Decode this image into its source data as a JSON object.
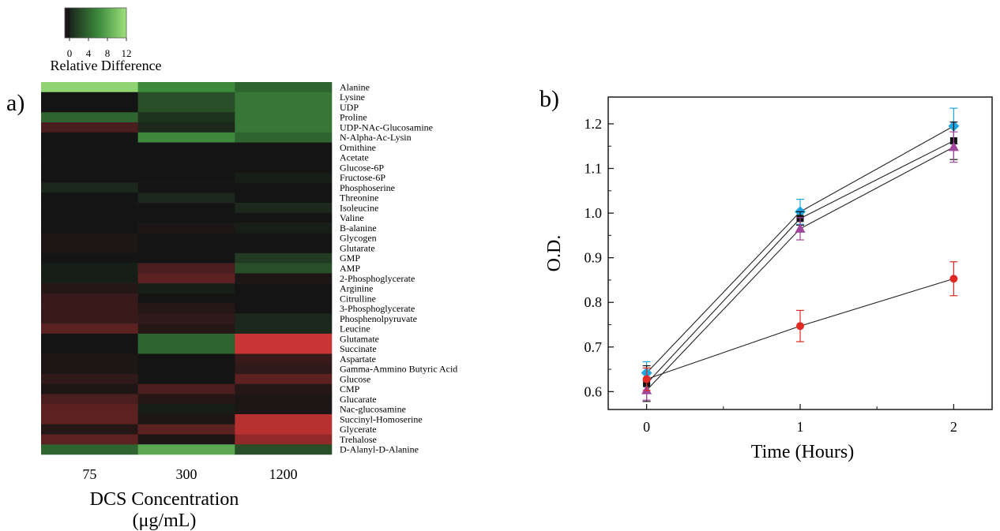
{
  "panels": {
    "a_label": "a)",
    "b_label": "b)"
  },
  "chart_data": [
    {
      "type": "heatmap",
      "title": "",
      "xlabel": "DCS Concentration",
      "xlabel_unit": "(μg/mL)",
      "columns": [
        "75",
        "300",
        "1200"
      ],
      "rows": [
        "Alanine",
        "Lysine",
        "UDP",
        "Proline",
        "UDP-NAc-Glucosamine",
        "N-Alpha-Ac-Lysin",
        "Ornithine",
        "Acetate",
        "Glucose-6P",
        "Fructose-6P",
        "Phosphoserine",
        "Threonine",
        "Isoleucine",
        "Valine",
        "B-alanine",
        "Glycogen",
        "Glutarate",
        "GMP",
        "AMP",
        "2-Phosphoglycerate",
        "Arginine",
        "Citrulline",
        "3-Phosphoglycerate",
        "Phosphenolpyruvate",
        "Leucine",
        "Glutamate",
        "Succinate",
        "Aspartate",
        "Gamma-Ammino Butyric Acid",
        "Glucose",
        "CMP",
        "Glucarate",
        "Nac-glucosamine",
        "Succinyl-Homoserine",
        "Glycerate",
        "Trehalose",
        "D-Alanyl-D-Alanine"
      ],
      "values": [
        [
          11,
          6,
          4
        ],
        [
          0,
          3,
          5
        ],
        [
          0,
          3,
          5
        ],
        [
          4,
          1.5,
          5
        ],
        [
          -3,
          1,
          5
        ],
        [
          0,
          6,
          4
        ],
        [
          0,
          0,
          0
        ],
        [
          0,
          0,
          0
        ],
        [
          0,
          0,
          0
        ],
        [
          0,
          0,
          0.5
        ],
        [
          1,
          0,
          0
        ],
        [
          0,
          1,
          0
        ],
        [
          0,
          0,
          1
        ],
        [
          0,
          0,
          0
        ],
        [
          0,
          -0.5,
          0.5
        ],
        [
          -0.5,
          0,
          0
        ],
        [
          -0.5,
          0,
          0
        ],
        [
          0,
          0,
          2
        ],
        [
          0.5,
          -3,
          3
        ],
        [
          0.5,
          -4,
          -0.5
        ],
        [
          -1,
          0.5,
          0
        ],
        [
          -2,
          0,
          0
        ],
        [
          -2,
          -1,
          0
        ],
        [
          -2,
          -1.5,
          1
        ],
        [
          -4,
          -1,
          1
        ],
        [
          0,
          4,
          -10
        ],
        [
          0,
          4,
          -10
        ],
        [
          -0.5,
          0,
          -2
        ],
        [
          -0.5,
          0,
          -1.5
        ],
        [
          -1.5,
          0,
          -4
        ],
        [
          -0.5,
          -3,
          -1
        ],
        [
          -3,
          -1,
          -0.5
        ],
        [
          -4,
          0.5,
          -0.5
        ],
        [
          -4,
          -0.5,
          -9
        ],
        [
          -1,
          -4,
          -9
        ],
        [
          -4,
          -0.5,
          -7
        ],
        [
          4,
          8,
          3
        ]
      ],
      "legend": {
        "title": "Relative Difference",
        "ticks": [
          "0",
          "4",
          "8",
          "12"
        ],
        "range": [
          -1,
          12
        ]
      },
      "colors": {
        "negative": "#c93434",
        "zero": "#141414",
        "positive_low": "#3d8a3d",
        "positive_high": "#9fe27c"
      }
    },
    {
      "type": "line",
      "title": "",
      "xlabel": "Time (Hours)",
      "ylabel": "O.D.",
      "x": [
        0,
        1,
        2
      ],
      "xticks": [
        "0",
        "1",
        "2"
      ],
      "yticks": [
        "0.6",
        "0.7",
        "0.8",
        "0.9",
        "1.0",
        "1.1",
        "1.2"
      ],
      "xlim": [
        -0.25,
        2.25
      ],
      "ylim": [
        0.56,
        1.26
      ],
      "series": [
        {
          "marker": "diamond",
          "color": "#1ea6e0",
          "values": [
            0.642,
            1.003,
            1.195
          ],
          "errors": [
            0.025,
            0.028,
            0.04
          ]
        },
        {
          "marker": "square",
          "color": "#111111",
          "values": [
            0.618,
            0.988,
            1.162
          ],
          "errors": [
            0.04,
            0.015,
            0.042
          ]
        },
        {
          "marker": "triangle",
          "color": "#a0469c",
          "values": [
            0.603,
            0.965,
            1.148
          ],
          "errors": [
            0.022,
            0.025,
            0.034
          ]
        },
        {
          "marker": "circle",
          "color": "#e22a25",
          "values": [
            0.628,
            0.747,
            0.853
          ],
          "errors": [
            0.025,
            0.035,
            0.038
          ]
        }
      ]
    }
  ]
}
